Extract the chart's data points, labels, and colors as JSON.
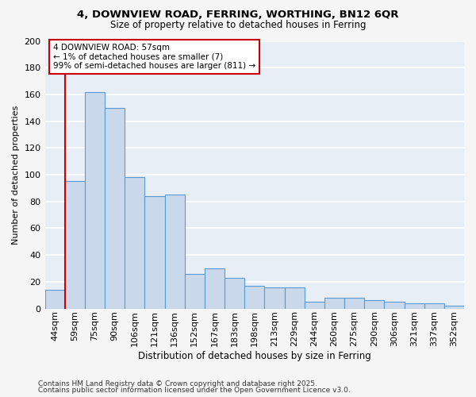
{
  "title1": "4, DOWNVIEW ROAD, FERRING, WORTHING, BN12 6QR",
  "title2": "Size of property relative to detached houses in Ferring",
  "categories": [
    "44sqm",
    "59sqm",
    "75sqm",
    "90sqm",
    "106sqm",
    "121sqm",
    "136sqm",
    "152sqm",
    "167sqm",
    "183sqm",
    "198sqm",
    "213sqm",
    "229sqm",
    "244sqm",
    "260sqm",
    "275sqm",
    "290sqm",
    "306sqm",
    "321sqm",
    "337sqm",
    "352sqm"
  ],
  "values": [
    14,
    95,
    162,
    150,
    98,
    84,
    85,
    26,
    30,
    23,
    17,
    16,
    16,
    5,
    8,
    8,
    6,
    5,
    4,
    4,
    2
  ],
  "bar_color": "#c9d9eb",
  "bar_edge_color": "#5b9bd5",
  "background_color": "#e8eef5",
  "grid_color": "#ffffff",
  "fig_background": "#f5f5f5",
  "ylabel": "Number of detached properties",
  "xlabel": "Distribution of detached houses by size in Ferring",
  "ylim": [
    0,
    200
  ],
  "yticks": [
    0,
    20,
    40,
    60,
    80,
    100,
    120,
    140,
    160,
    180,
    200
  ],
  "annotation_title": "4 DOWNVIEW ROAD: 57sqm",
  "annotation_line1": "← 1% of detached houses are smaller (7)",
  "annotation_line2": "99% of semi-detached houses are larger (811) →",
  "annotation_box_color": "#ffffff",
  "annotation_box_edge": "#cc0000",
  "vline_color": "#cc0000",
  "footer1": "Contains HM Land Registry data © Crown copyright and database right 2025.",
  "footer2": "Contains public sector information licensed under the Open Government Licence v3.0."
}
